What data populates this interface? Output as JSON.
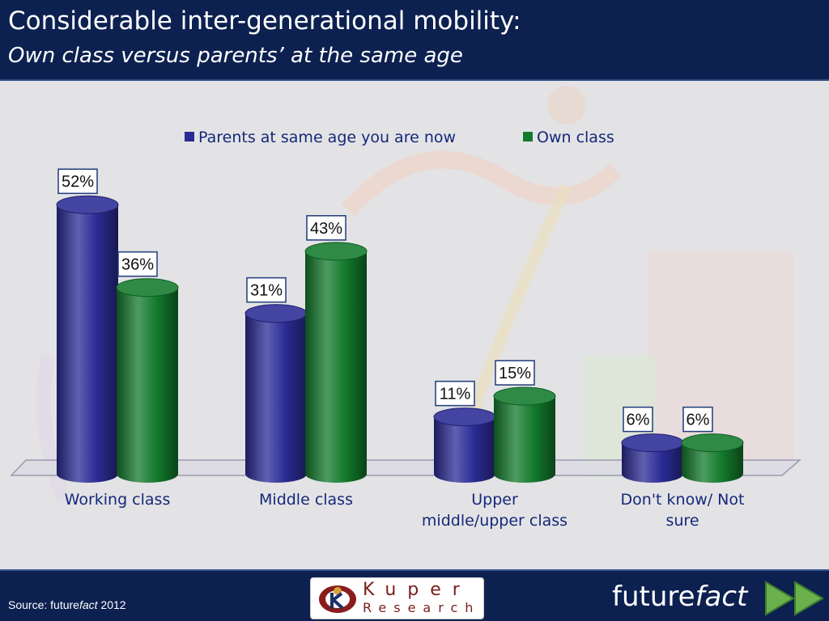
{
  "header": {
    "title": "Considerable inter-generational mobility:",
    "subtitle": "Own class versus parents’ at the same age"
  },
  "chart_data": {
    "type": "bar",
    "categories": [
      "Working class",
      "Middle class",
      "Upper middle/upper class",
      "Don't know/ Not sure"
    ],
    "series": [
      {
        "name": "Parents at same age you are now",
        "values": [
          52,
          31,
          11,
          6
        ],
        "color": "#2b2b95"
      },
      {
        "name": "Own class",
        "values": [
          36,
          43,
          15,
          6
        ],
        "color": "#137a2c"
      }
    ],
    "value_suffix": "%",
    "legend_position": "top-center",
    "grid": false
  },
  "footer": {
    "source_prefix": "Source: future",
    "source_italic": "fact",
    "source_year": " 2012",
    "kuper_word": "Kuper",
    "kuper_sub": "Research",
    "brand_plain": "future",
    "brand_italic": "fact"
  },
  "icons": [
    "kuper-logo-icon",
    "play-arrow-icon"
  ]
}
